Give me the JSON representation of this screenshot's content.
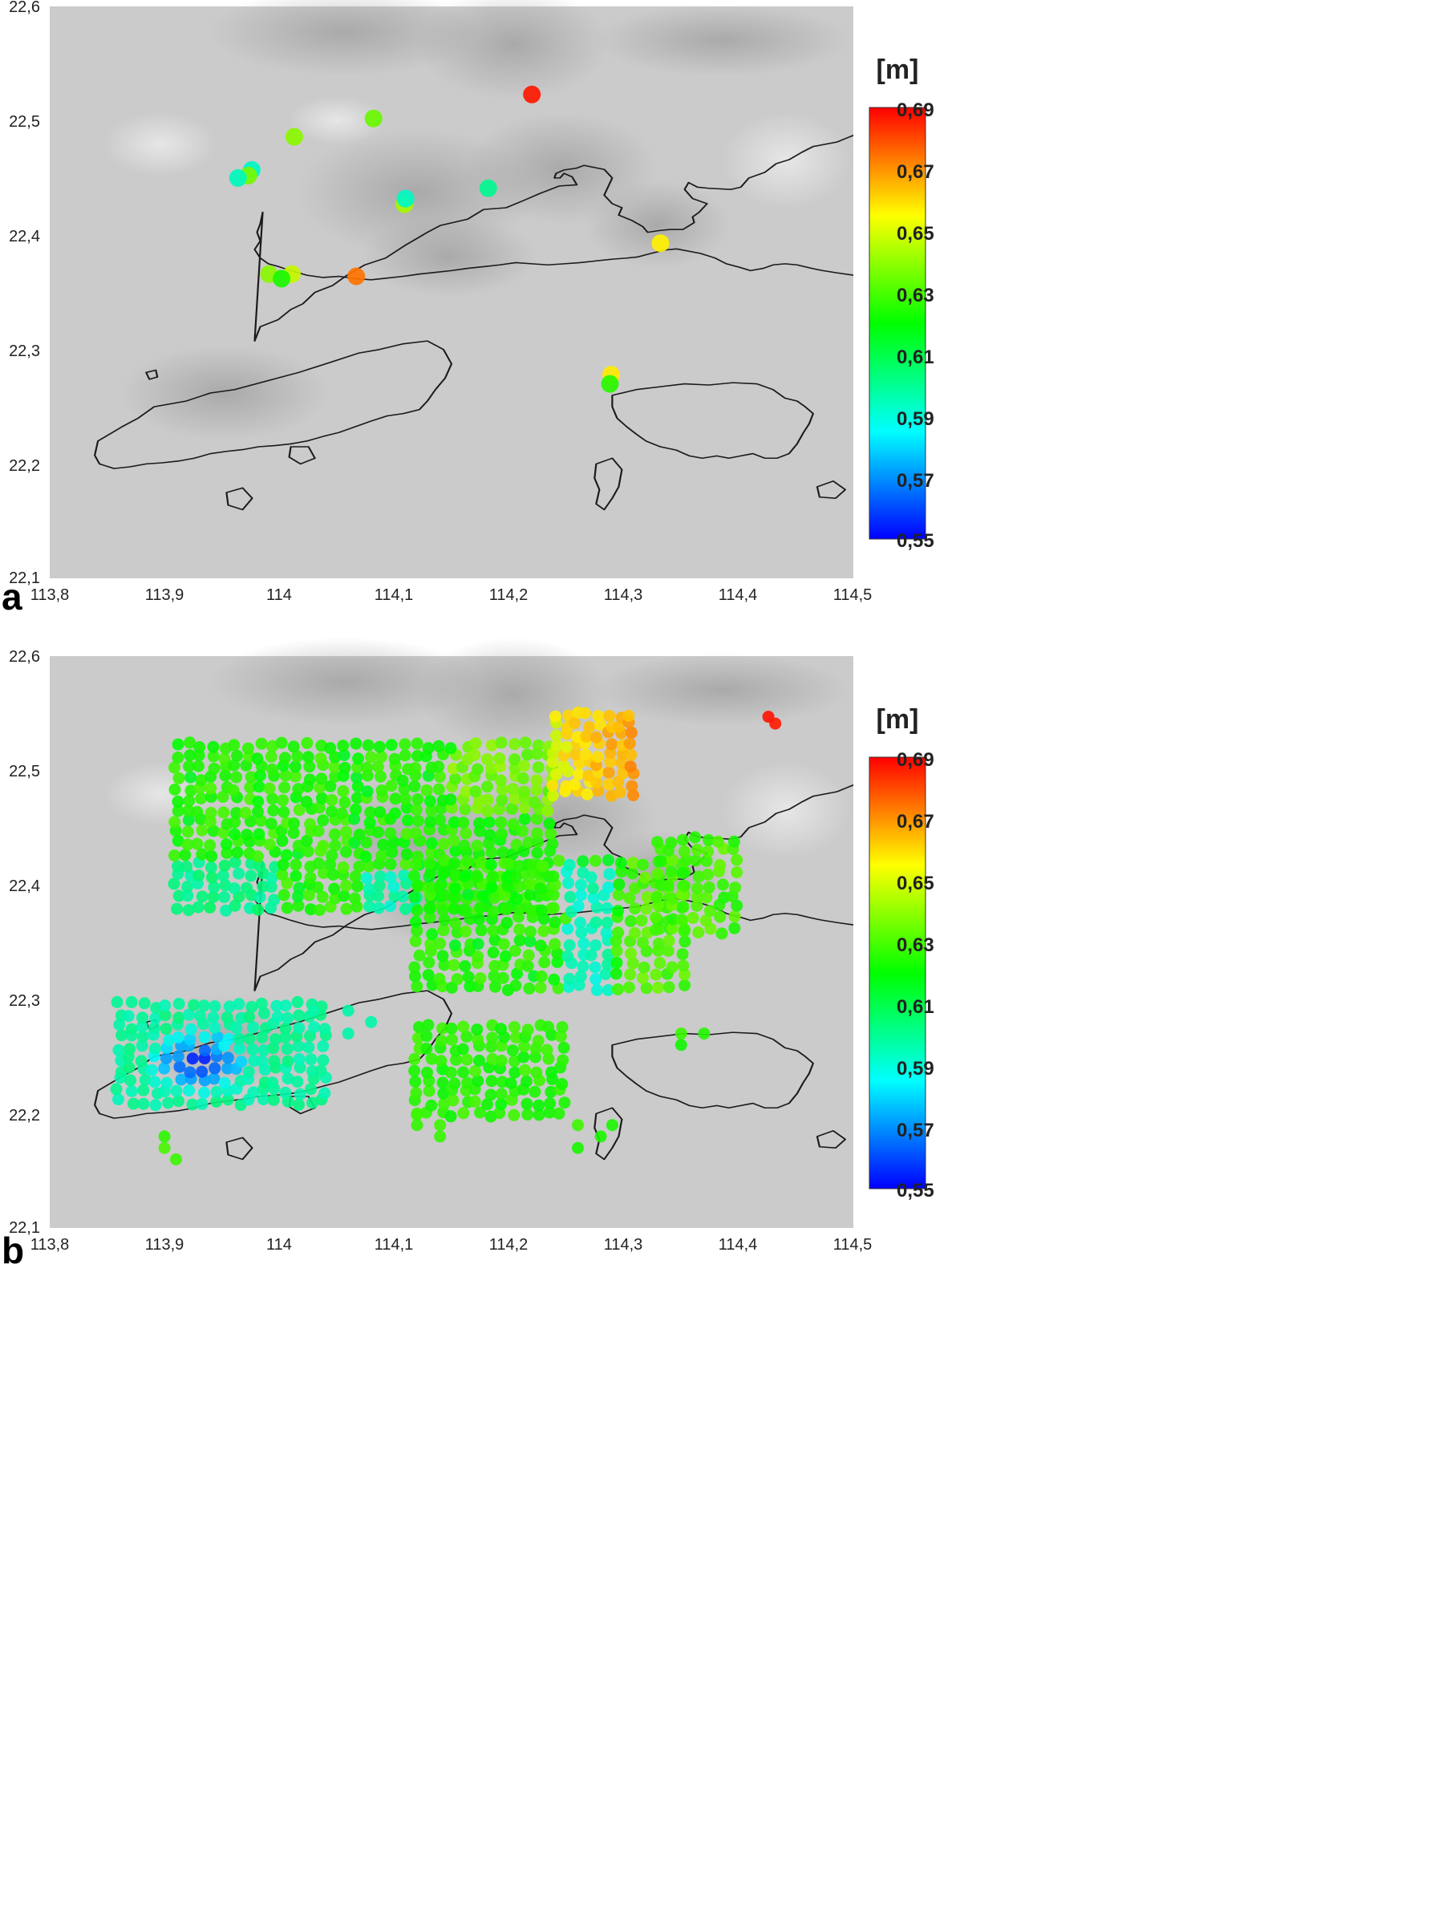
{
  "x_ticks": [
    "113,8",
    "113,9",
    "114",
    "114,1",
    "114,2",
    "114,3",
    "114,4",
    "114,5"
  ],
  "y_ticks": [
    "22,6",
    "22,5",
    "22,4",
    "22,3",
    "22,2",
    "22,1"
  ],
  "colorbar": {
    "unit": "[m]",
    "ticks": [
      "0,69",
      "0,67",
      "0,65",
      "0,63",
      "0,61",
      "0,59",
      "0,57",
      "0,55"
    ],
    "min": 0.55,
    "max": 0.69,
    "colors": [
      "#0000ff",
      "#00ffff",
      "#00ff00",
      "#ffff00",
      "#ff0000"
    ]
  },
  "panels": [
    {
      "id": "a",
      "label": "a",
      "xlim": [
        113.8,
        114.5
      ],
      "ylim": [
        22.1,
        22.6
      ],
      "points": [
        {
          "lon": 114.22,
          "lat": 22.523,
          "v": 0.689
        },
        {
          "lon": 114.082,
          "lat": 22.502,
          "v": 0.636
        },
        {
          "lon": 114.013,
          "lat": 22.486,
          "v": 0.641
        },
        {
          "lon": 113.976,
          "lat": 22.457,
          "v": 0.594
        },
        {
          "lon": 113.973,
          "lat": 22.452,
          "v": 0.638
        },
        {
          "lon": 113.964,
          "lat": 22.45,
          "v": 0.595
        },
        {
          "lon": 114.109,
          "lat": 22.427,
          "v": 0.645
        },
        {
          "lon": 114.11,
          "lat": 22.432,
          "v": 0.594
        },
        {
          "lon": 114.182,
          "lat": 22.441,
          "v": 0.602
        },
        {
          "lon": 114.332,
          "lat": 22.393,
          "v": 0.656
        },
        {
          "lon": 113.991,
          "lat": 22.366,
          "v": 0.641
        },
        {
          "lon": 114.011,
          "lat": 22.366,
          "v": 0.65
        },
        {
          "lon": 114.002,
          "lat": 22.362,
          "v": 0.624
        },
        {
          "lon": 114.067,
          "lat": 22.364,
          "v": 0.675
        },
        {
          "lon": 114.289,
          "lat": 22.278,
          "v": 0.657
        },
        {
          "lon": 114.288,
          "lat": 22.27,
          "v": 0.626
        }
      ]
    },
    {
      "id": "b",
      "label": "b",
      "xlim": [
        113.8,
        114.5
      ],
      "ylim": [
        22.1,
        22.6
      ],
      "points": []
    }
  ]
}
